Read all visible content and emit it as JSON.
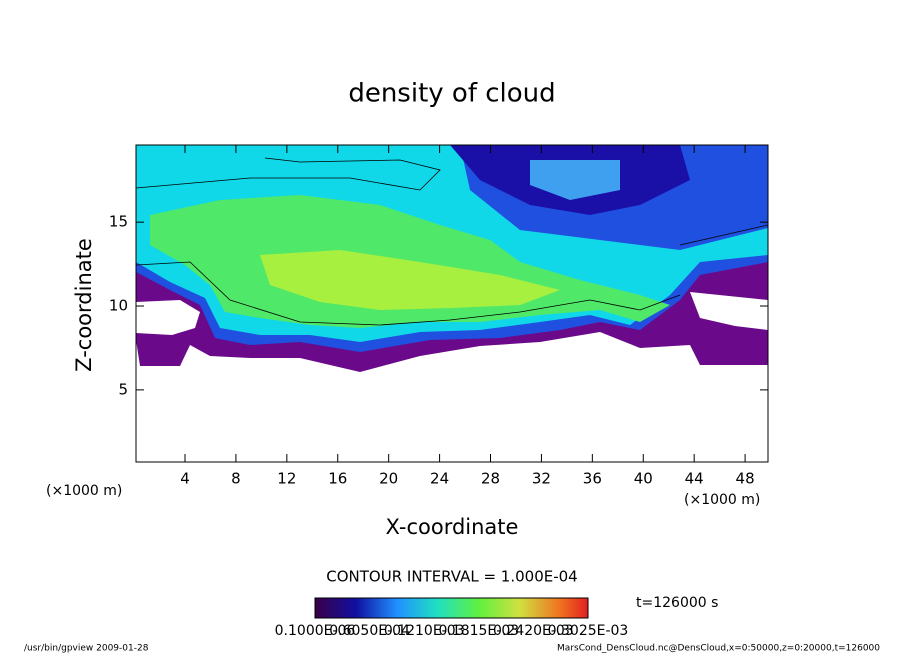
{
  "chart_data": {
    "type": "contour",
    "title": "density of cloud",
    "x_label": "X-coordinate",
    "y_label": "Z-coordinate",
    "x_unit": "(×1000 m)",
    "y_unit": "(×1000 m)",
    "xlim": [
      0.15,
      49.8
    ],
    "ylim": [
      0.7,
      19.6
    ],
    "xticks": [
      4,
      8,
      12,
      16,
      20,
      24,
      28,
      32,
      36,
      40,
      44,
      48
    ],
    "yticks": [
      5,
      10,
      15
    ],
    "contour_interval": "CONTOUR INTERVAL = 1.000E-04",
    "time": "t=126000 s",
    "colorbar_labels": [
      "0.1000E-06",
      "0.6050E-04",
      "0.1210E-03",
      "0.1815E-03",
      "0.2420E-03",
      "0.3025E-03"
    ],
    "footer_left": "/usr/bin/gpview  2009-01-28",
    "footer_right": "MarsCond_DensCloud.nc@DensCloud,x=0:50000,z=0:20000,t=126000"
  }
}
